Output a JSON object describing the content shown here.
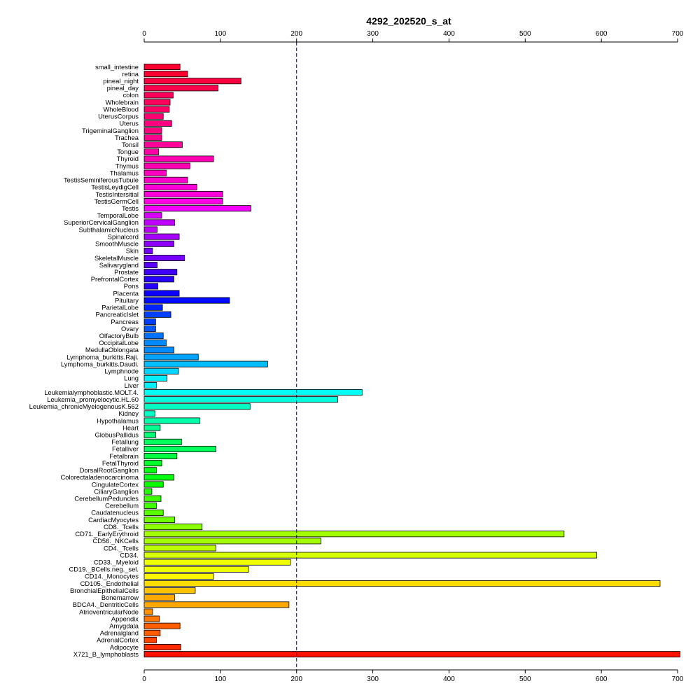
{
  "chart_data": {
    "type": "bar",
    "orientation": "horizontal",
    "title": "4292_202520_s_at",
    "xlim": [
      0,
      700
    ],
    "x_ticks": [
      0,
      100,
      200,
      300,
      400,
      500,
      600,
      700
    ],
    "x_tick_labels": [
      "0",
      "100",
      "200",
      "300",
      "400",
      "500",
      "600",
      "700"
    ],
    "reference_line": 200,
    "grid": false,
    "categories": [
      "small_intestine",
      "retina",
      "pineal_night",
      "pineal_day",
      "colon",
      "Wholebrain",
      "WholeBlood",
      "UterusCorpus",
      "Uterus",
      "TrigeminalGanglion",
      "Trachea",
      "Tonsil",
      "Tongue",
      "Thyroid",
      "Thymus",
      "Thalamus",
      "TestisSeminiferousTubule",
      "TestisLeydigCell",
      "TestisIntersitial",
      "TestisGermCell",
      "Testis",
      "TemporalLobe",
      "SuperiorCervicalGanglion",
      "SubthalamicNucleus",
      "Spinalcord",
      "SmoothMuscle",
      "Skin",
      "SkeletalMuscle",
      "Salivarygland",
      "Prostate",
      "PrefrontalCortex",
      "Pons",
      "Placenta",
      "Pituitary",
      "ParietalLobe",
      "PancreaticIslet",
      "Pancreas",
      "Ovary",
      "OlfactoryBulb",
      "OccipitalLobe",
      "MedullaOblongata",
      "Lymphoma_burkitts.Raji.",
      "Lymphoma_burkitts.Daudi.",
      "Lymphnode",
      "Lung",
      "Liver",
      "Leukemialymphoblastic.MOLT.4.",
      "Leukemia_promyelocytic.HL.60",
      "Leukemia_chronicMyelogenousK.562",
      "Kidney",
      "Hypothalamus",
      "Heart",
      "GlobusPallidus",
      "Fetallung",
      "Fetalliver",
      "Fetalbrain",
      "FetalThyroid",
      "DorsalRootGanglion",
      "Colorectaladenocarcinoma",
      "CingulateCortex",
      "CiliaryGanglion",
      "CerebellumPeduncles",
      "Cerebellum",
      "Caudatenucleus",
      "CardiacMyocytes",
      "CD8._Tcells",
      "CD71._EarlyErythroid",
      "CD56._NKCells",
      "CD4._Tcells",
      "CD34.",
      "CD33._Myeloid",
      "CD19._BCells.neg._sel.",
      "CD14._Monocytes",
      "CD105._Endothelial",
      "BronchialEpithelialCells",
      "Bonemarrow",
      "BDCA4._DentriticCells",
      "AtrioventricularNode",
      "Appendix",
      "Amygdala",
      "Adrenalgland",
      "AdrenalCortex",
      "Adipocyte",
      "X721_B_lymphoblasts"
    ],
    "values": [
      47,
      57,
      127,
      97,
      38,
      34,
      33,
      25,
      36,
      23,
      23,
      50,
      19,
      91,
      60,
      29,
      57,
      69,
      103,
      103,
      140,
      23,
      40,
      17,
      46,
      39,
      11,
      53,
      17,
      43,
      39,
      18,
      46,
      112,
      24,
      35,
      15,
      15,
      25,
      29,
      39,
      71,
      162,
      45,
      30,
      16,
      286,
      254,
      139,
      14,
      73,
      21,
      15,
      49,
      94,
      43,
      23,
      16,
      39,
      25,
      10,
      22,
      16,
      25,
      40,
      76,
      551,
      232,
      94,
      594,
      192,
      137,
      91,
      677,
      67,
      40,
      190,
      11,
      20,
      47,
      21,
      16,
      48,
      703
    ],
    "colors": [
      "#FF0033",
      "#FF0040",
      "#FF004D",
      "#FF005A",
      "#FF0066",
      "#FF0073",
      "#FF0080",
      "#FF008C",
      "#FF0099",
      "#FF00A6",
      "#FF00B3",
      "#FF00C0",
      "#FF00CC",
      "#FF00D9",
      "#FF00E6",
      "#F300FF",
      "#DA00FF",
      "#C000FF",
      "#A700FF",
      "#8D00FF",
      "#7400FF",
      "#5A00FF",
      "#4000FF",
      "#2700FF",
      "#0D00FF",
      "#000BFF",
      "#0024FF",
      "#003EFF",
      "#0057FF",
      "#0070FF",
      "#008AFF",
      "#00A3FF",
      "#00BDFF",
      "#00D6FF",
      "#00F0FF",
      "#00FFF5",
      "#00FFDC",
      "#00FFC3",
      "#00FFA9",
      "#00FF90",
      "#00FF76",
      "#00FF5D",
      "#00FF43",
      "#00FF2A",
      "#00FF10",
      "#0AFF00",
      "#23FF00",
      "#3DFF00",
      "#57FF00",
      "#70FF00",
      "#8AFF00",
      "#A3FF00",
      "#BCFF00",
      "#D6FF00",
      "#F0FF00",
      "#FFF500",
      "#FFDC00",
      "#FFC300",
      "#FFA900",
      "#FF9000",
      "#FF7600",
      "#FF5D00",
      "#FF4300",
      "#FF2A00",
      "#FF1000"
    ]
  }
}
